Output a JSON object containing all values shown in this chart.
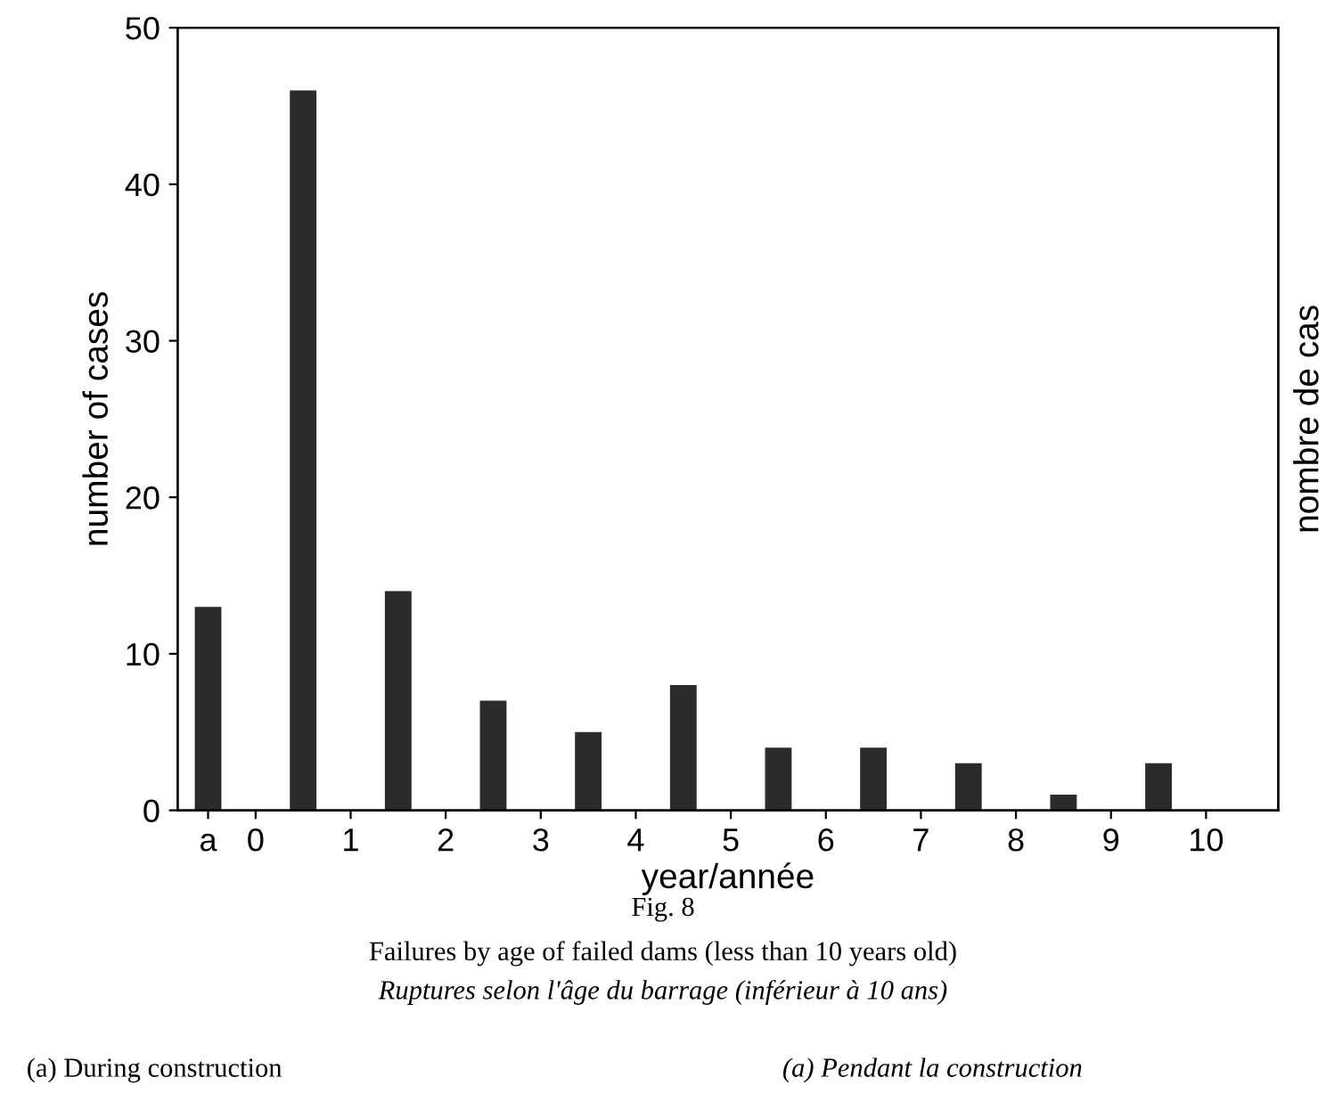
{
  "chart_data": {
    "type": "bar",
    "xlabel": "year/année",
    "ylabel": "number of cases",
    "y2label": "nombre de cas",
    "x": [
      -0.5,
      0.5,
      1.5,
      2.5,
      3.5,
      4.5,
      5.5,
      6.5,
      7.5,
      8.5,
      9.5
    ],
    "values": [
      13,
      46,
      14,
      7,
      5,
      8,
      4,
      4,
      3,
      1,
      3
    ],
    "color": "#2b2b2b",
    "xlim": [
      -0.82,
      10.76
    ],
    "xticks": [
      {
        "value": -0.5,
        "label": "a"
      },
      0,
      1,
      2,
      3,
      4,
      5,
      6,
      7,
      8,
      9,
      10
    ],
    "ylim": [
      0,
      50
    ],
    "yticks": [
      0,
      10,
      20,
      30,
      40,
      50
    ],
    "grid": false,
    "annotations": [
      "Fig. 8",
      "Failures by age of failed dams (less than 10 years old)",
      "Ruptures selon l'âge du barrage (inférieur à 10 ans)",
      "(a) During construction",
      "(a) Pendant la construction"
    ]
  }
}
